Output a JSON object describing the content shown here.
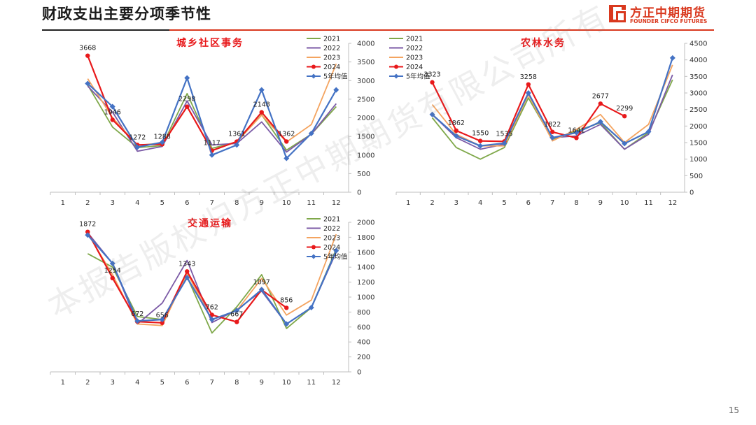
{
  "header": {
    "title": "财政支出主要分项季节性",
    "logo_cn": "方正中期期货",
    "logo_en": "FOUNDER CIFCO FUTURES"
  },
  "page_number": "15",
  "watermark": "本报告版权归方正中期期货有限公司所有",
  "colors": {
    "accent": "#d9381e"
  },
  "chart_data": [
    {
      "type": "line",
      "title": "城乡社区事务",
      "categories": [
        "1",
        "2",
        "3",
        "4",
        "5",
        "6",
        "7",
        "8",
        "9",
        "10",
        "11",
        "12"
      ],
      "ylim": [
        0,
        4000
      ],
      "yticks": [
        0,
        500,
        1000,
        1500,
        2000,
        2500,
        3000,
        3500,
        4000
      ],
      "legend": "top-right",
      "series": [
        {
          "name": "2021",
          "color": "#7fa84a",
          "marker": "none",
          "values": [
            null,
            2880,
            1750,
            1200,
            1250,
            2650,
            1180,
            1350,
            2080,
            1130,
            1560,
            2300
          ]
        },
        {
          "name": "2022",
          "color": "#7b5aa6",
          "marker": "none",
          "values": [
            null,
            2850,
            2150,
            1100,
            1230,
            2450,
            1270,
            1310,
            1890,
            1080,
            1560,
            2380
          ]
        },
        {
          "name": "2023",
          "color": "#f4a460",
          "marker": "none",
          "values": [
            null,
            3050,
            2000,
            1260,
            1320,
            2300,
            1130,
            1360,
            2070,
            1350,
            1820,
            3450
          ]
        },
        {
          "name": "2024",
          "color": "#e8191b",
          "marker": "circle",
          "values": [
            null,
            3668,
            1946,
            1272,
            1288,
            2298,
            1117,
            1361,
            2148,
            1362,
            null,
            null
          ]
        },
        {
          "name": "5年均值",
          "color": "#4472c4",
          "marker": "diamond",
          "values": [
            null,
            2920,
            2300,
            1210,
            1340,
            3070,
            1000,
            1270,
            2750,
            910,
            1580,
            2750
          ]
        }
      ],
      "data_labels": [
        {
          "x": "2",
          "value": 3668,
          "text": "3668"
        },
        {
          "x": "3",
          "value": 1946,
          "text": "1946"
        },
        {
          "x": "4",
          "value": 1272,
          "text": "1272"
        },
        {
          "x": "5",
          "value": 1288,
          "text": "1288"
        },
        {
          "x": "6",
          "value": 2298,
          "text": "2298"
        },
        {
          "x": "7",
          "value": 1117,
          "text": "1117"
        },
        {
          "x": "8",
          "value": 1361,
          "text": "1361"
        },
        {
          "x": "9",
          "value": 2148,
          "text": "2148"
        },
        {
          "x": "10",
          "value": 1362,
          "text": "1362"
        }
      ]
    },
    {
      "type": "line",
      "title": "农林水务",
      "categories": [
        "1",
        "2",
        "3",
        "4",
        "5",
        "6",
        "7",
        "8",
        "9",
        "10",
        "11",
        "12"
      ],
      "ylim": [
        0,
        4500
      ],
      "yticks": [
        0,
        500,
        1000,
        1500,
        2000,
        2500,
        3000,
        3500,
        4000,
        4500
      ],
      "legend": "top-left",
      "series": [
        {
          "name": "2021",
          "color": "#7fa84a",
          "marker": "none",
          "values": [
            null,
            2250,
            1350,
            1000,
            1350,
            2850,
            1600,
            1850,
            2100,
            1300,
            1800,
            3400
          ]
        },
        {
          "name": "2022",
          "color": "#7b5aa6",
          "marker": "none",
          "values": [
            null,
            2350,
            1650,
            1300,
            1450,
            2950,
            1650,
            1700,
            2050,
            1300,
            1750,
            3550
          ]
        },
        {
          "name": "2023",
          "color": "#f4a460",
          "marker": "none",
          "values": [
            null,
            2650,
            1750,
            1400,
            1400,
            2950,
            1550,
            1900,
            2350,
            1500,
            2050,
            3850
          ]
        },
        {
          "name": "2024",
          "color": "#e8191b",
          "marker": "circle",
          "values": [
            null,
            3323,
            1862,
            1550,
            1535,
            3258,
            1822,
            1641,
            2677,
            2299,
            null,
            null
          ]
        },
        {
          "name": "5年均值",
          "color": "#4472c4",
          "marker": "diamond",
          "values": [
            null,
            2350,
            1700,
            1400,
            1480,
            3000,
            1650,
            1800,
            2130,
            1470,
            1830,
            4060
          ]
        }
      ],
      "data_labels": [
        {
          "x": "2",
          "value": 3323,
          "text": "3323"
        },
        {
          "x": "3",
          "value": 1862,
          "text": "1862"
        },
        {
          "x": "4",
          "value": 1550,
          "text": "1550"
        },
        {
          "x": "5",
          "value": 1535,
          "text": "1535"
        },
        {
          "x": "6",
          "value": 3258,
          "text": "3258"
        },
        {
          "x": "7",
          "value": 1822,
          "text": "1822"
        },
        {
          "x": "8",
          "value": 1641,
          "text": "1641"
        },
        {
          "x": "9",
          "value": 2677,
          "text": "2677"
        },
        {
          "x": "10",
          "value": 2299,
          "text": "2299"
        }
      ]
    },
    {
      "type": "line",
      "title": "交通运输",
      "categories": [
        "1",
        "2",
        "3",
        "4",
        "5",
        "6",
        "7",
        "8",
        "9",
        "10",
        "11",
        "12"
      ],
      "ylim": [
        0,
        2000
      ],
      "yticks": [
        0,
        200,
        400,
        600,
        800,
        1000,
        1200,
        1400,
        1600,
        1800,
        2000
      ],
      "legend": "top-right",
      "series": [
        {
          "name": "2021",
          "color": "#7fa84a",
          "marker": "none",
          "values": [
            null,
            1580,
            1400,
            740,
            700,
            1270,
            520,
            870,
            1300,
            580,
            860,
            1640
          ]
        },
        {
          "name": "2022",
          "color": "#7b5aa6",
          "marker": "none",
          "values": [
            null,
            1860,
            1450,
            640,
            920,
            1490,
            660,
            830,
            1080,
            640,
            860,
            1600
          ]
        },
        {
          "name": "2023",
          "color": "#f4a460",
          "marker": "none",
          "values": [
            null,
            1850,
            1300,
            640,
            620,
            1320,
            700,
            820,
            1250,
            760,
            960,
            1840
          ]
        },
        {
          "name": "2024",
          "color": "#e8191b",
          "marker": "circle",
          "values": [
            null,
            1872,
            1254,
            672,
            656,
            1343,
            762,
            667,
            1097,
            856,
            null,
            null
          ]
        },
        {
          "name": "5年均值",
          "color": "#4472c4",
          "marker": "diamond",
          "values": [
            null,
            1830,
            1450,
            680,
            700,
            1260,
            700,
            820,
            1100,
            640,
            860,
            1620
          ]
        }
      ],
      "data_labels": [
        {
          "x": "2",
          "value": 1872,
          "text": "1872"
        },
        {
          "x": "3",
          "value": 1254,
          "text": "1254"
        },
        {
          "x": "4",
          "value": 672,
          "text": "672"
        },
        {
          "x": "5",
          "value": 656,
          "text": "656"
        },
        {
          "x": "6",
          "value": 1343,
          "text": "1343"
        },
        {
          "x": "7",
          "value": 762,
          "text": "762"
        },
        {
          "x": "8",
          "value": 667,
          "text": "667"
        },
        {
          "x": "9",
          "value": 1097,
          "text": "1097"
        },
        {
          "x": "10",
          "value": 856,
          "text": "856"
        }
      ]
    }
  ]
}
